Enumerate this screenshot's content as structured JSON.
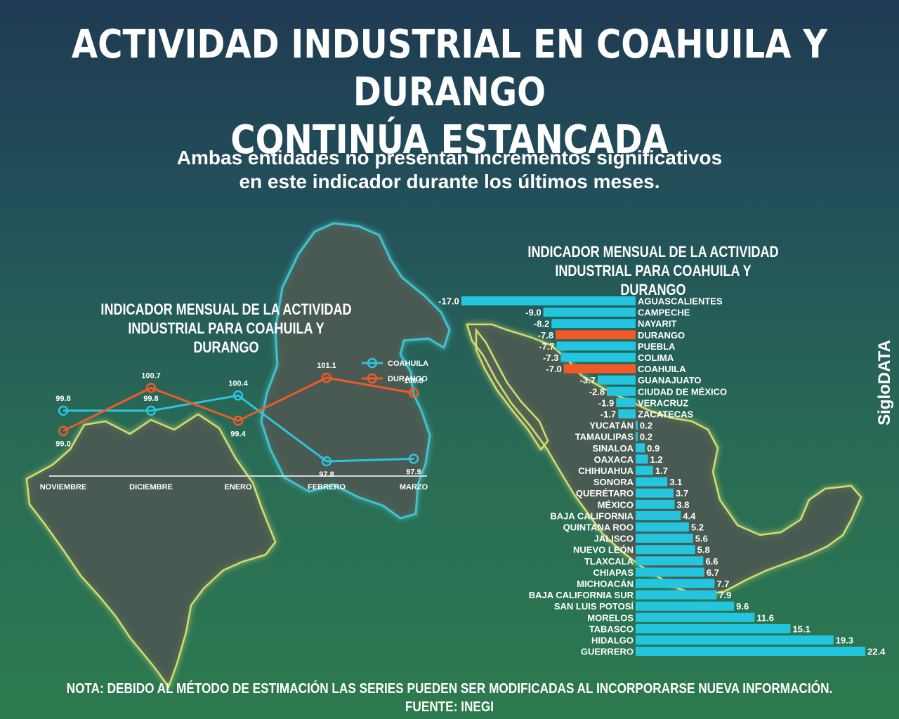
{
  "headline": {
    "line1": "ACTIVIDAD INDUSTRIAL EN COAHUILA Y DURANGO",
    "line2": "CONTINÚA ESTANCADA"
  },
  "subheadline": {
    "line1": "Ambas entidades no presentan incrementos significativos",
    "line2": "en este indicador durante los últimos meses."
  },
  "brand": "SigloDATA",
  "footer": {
    "note": "NOTA: DEBIDO AL MÉTODO DE ESTIMACIÓN LAS SERIES PUEDEN SER MODIFICADAS AL INCORPORARSE NUEVA INFORMACIÓN.",
    "source": "FUENTE: INEGI"
  },
  "colors": {
    "coahuila": "#2ec4dc",
    "durango": "#f05a28",
    "bar_default": "#23c6de",
    "bar_highlight": "#f05a28",
    "map_fill": "#4a5a52",
    "map_glow": "#d8e86a"
  },
  "chart_data": [
    {
      "type": "line",
      "title_line1": "INDICADOR MENSUAL DE LA ACTIVIDAD",
      "title_line2": "INDUSTRIAL PARA COAHUILA Y DURANGO",
      "categories": [
        "NOVIEMBRE",
        "DICIEMBRE",
        "ENERO",
        "FEBRERO",
        "MARZO"
      ],
      "series": [
        {
          "name": "COAHUILA",
          "color": "#2ec4dc",
          "values": [
            99.8,
            99.8,
            100.4,
            97.8,
            97.9
          ]
        },
        {
          "name": "DURANGO",
          "color": "#f05a28",
          "values": [
            99.0,
            100.7,
            99.4,
            101.1,
            100.5
          ]
        }
      ],
      "legend": "top-right",
      "grid": false
    },
    {
      "type": "bar",
      "orientation": "horizontal",
      "title_line1": "INDICADOR MENSUAL DE LA ACTIVIDAD",
      "title_line2": "INDUSTRIAL PARA COAHUILA Y DURANGO",
      "categories": [
        "AGUASCALIENTES",
        "CAMPECHE",
        "NAYARIT",
        "DURANGO",
        "PUEBLA",
        "COLIMA",
        "COAHUILA",
        "GUANAJUATO",
        "CIUDAD DE MÉXICO",
        "VERACRUZ",
        "ZACATECAS",
        "YUCATÁN",
        "TAMAULIPAS",
        "SINALOA",
        "OAXACA",
        "CHIHUAHUA",
        "SONORA",
        "QUERÉTARO",
        "MÉXICO",
        "BAJA CALIFORNIA",
        "QUINTANA ROO",
        "JALISCO",
        "NUEVO LEÓN",
        "TLAXCALA",
        "CHIAPAS",
        "MICHOACÁN",
        "BAJA CALIFORNIA SUR",
        "SAN LUIS POTOSÍ",
        "MORELOS",
        "TABASCO",
        "HIDALGO",
        "GUERRERO"
      ],
      "labels": [
        "-17.0",
        "-9.0",
        "-8.2",
        "-7.8",
        "-7.7",
        "-7.3",
        "-7.0",
        "-3.7",
        "-2.8",
        "-1.9",
        "-1.7",
        "0.2",
        "0.2",
        "0.9",
        "1.2",
        "1.7",
        "3.1",
        "3.7",
        "3.8",
        "4.4",
        "5.2",
        "5.6",
        "5.8",
        "6.6",
        "6.7",
        "7.7",
        "7.9",
        "9.6",
        "11.6",
        "15.1",
        "19.3",
        "22.4"
      ],
      "values": [
        -17.0,
        -9.0,
        -8.2,
        -7.8,
        -7.7,
        -7.3,
        -7.0,
        -3.7,
        -2.8,
        -1.9,
        -1.7,
        0.2,
        0.2,
        0.9,
        1.2,
        1.7,
        3.1,
        3.7,
        3.8,
        4.4,
        5.2,
        5.6,
        5.8,
        6.6,
        6.7,
        7.7,
        7.9,
        9.6,
        11.6,
        15.1,
        19.3,
        22.4
      ],
      "highlight": [
        "DURANGO",
        "COAHUILA"
      ],
      "grid": false
    }
  ]
}
